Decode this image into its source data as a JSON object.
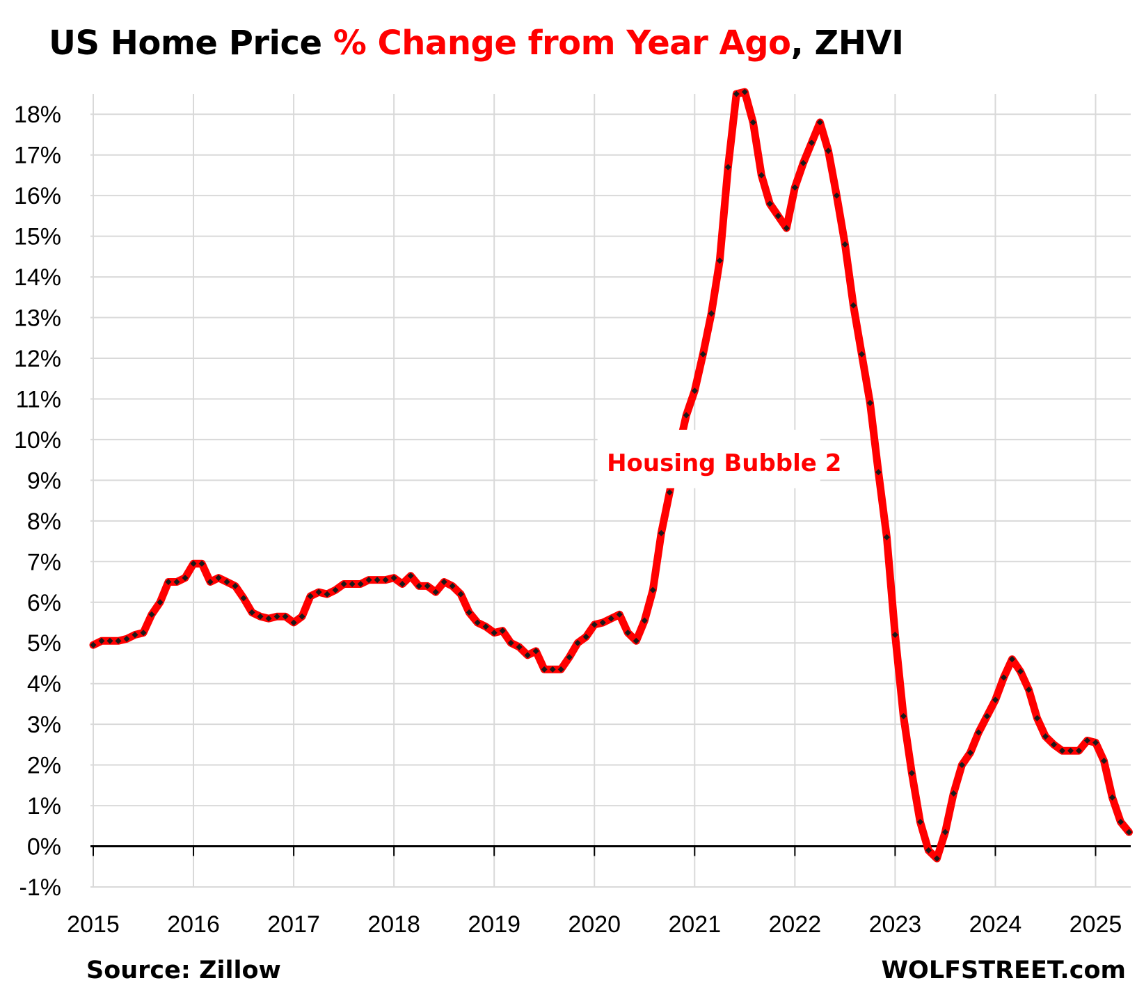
{
  "title": {
    "part1": "US Home Price ",
    "part2": "% Change from Year Ago",
    "part3": ", ZHVI"
  },
  "footer": {
    "source": "Source: Zillow",
    "site": "WOLFSTREET.com"
  },
  "colors": {
    "line": "#ff0000",
    "markers": "#1a1a1a",
    "grid": "#d9d9d9",
    "zero_axis": "#000000",
    "annotation": "#ff0000"
  },
  "chart_data": {
    "type": "line",
    "title": "US Home Price % Change from Year Ago, ZHVI",
    "xlabel": "",
    "ylabel": "",
    "ylim": [
      -1,
      18.5
    ],
    "xlim": [
      2015,
      2025.4
    ],
    "y_ticks": [
      -1,
      0,
      1,
      2,
      3,
      4,
      5,
      6,
      7,
      8,
      9,
      10,
      11,
      12,
      13,
      14,
      15,
      16,
      17,
      18
    ],
    "y_tick_labels": [
      "-1%",
      "0%",
      "1%",
      "2%",
      "3%",
      "4%",
      "5%",
      "6%",
      "7%",
      "8%",
      "9%",
      "10%",
      "11%",
      "12%",
      "13%",
      "14%",
      "15%",
      "16%",
      "17%",
      "18%"
    ],
    "x_ticks": [
      2015,
      2016,
      2017,
      2018,
      2019,
      2020,
      2021,
      2022,
      2023,
      2024,
      2025
    ],
    "x_tick_labels": [
      "2015",
      "2016",
      "2017",
      "2018",
      "2019",
      "2020",
      "2021",
      "2022",
      "2023",
      "2024",
      "2025"
    ],
    "grid": true,
    "legend": "none",
    "annotation": {
      "text": "Housing Bubble 2",
      "x": 2021.35,
      "y": 9.3
    },
    "series": [
      {
        "start": "2015-01",
        "frequency": "monthly",
        "values": [
          4.95,
          5.05,
          5.05,
          5.05,
          5.1,
          5.2,
          5.25,
          5.7,
          6.0,
          6.5,
          6.5,
          6.6,
          6.95,
          6.95,
          6.5,
          6.6,
          6.5,
          6.4,
          6.1,
          5.75,
          5.65,
          5.6,
          5.65,
          5.65,
          5.5,
          5.65,
          6.15,
          6.25,
          6.2,
          6.3,
          6.45,
          6.45,
          6.45,
          6.55,
          6.55,
          6.55,
          6.6,
          6.45,
          6.65,
          6.4,
          6.4,
          6.25,
          6.5,
          6.4,
          6.2,
          5.75,
          5.5,
          5.4,
          5.25,
          5.3,
          5.0,
          4.9,
          4.7,
          4.8,
          4.35,
          4.35,
          4.35,
          4.65,
          5.0,
          5.15,
          5.45,
          5.5,
          5.6,
          5.7,
          5.25,
          5.05,
          5.55,
          6.3,
          7.7,
          8.7,
          9.7,
          10.6,
          11.2,
          12.1,
          13.1,
          14.4,
          16.7,
          18.5,
          18.55,
          17.8,
          16.5,
          15.8,
          15.5,
          15.2,
          16.2,
          16.8,
          17.3,
          17.8,
          17.1,
          16.0,
          14.8,
          13.3,
          12.1,
          10.9,
          9.2,
          7.6,
          5.2,
          3.2,
          1.8,
          0.6,
          -0.1,
          -0.3,
          0.35,
          1.3,
          2.0,
          2.3,
          2.8,
          3.2,
          3.6,
          4.15,
          4.6,
          4.3,
          3.85,
          3.15,
          2.7,
          2.5,
          2.35,
          2.35,
          2.35,
          2.6,
          2.55,
          2.1,
          1.2,
          0.6,
          0.35
        ]
      }
    ]
  }
}
